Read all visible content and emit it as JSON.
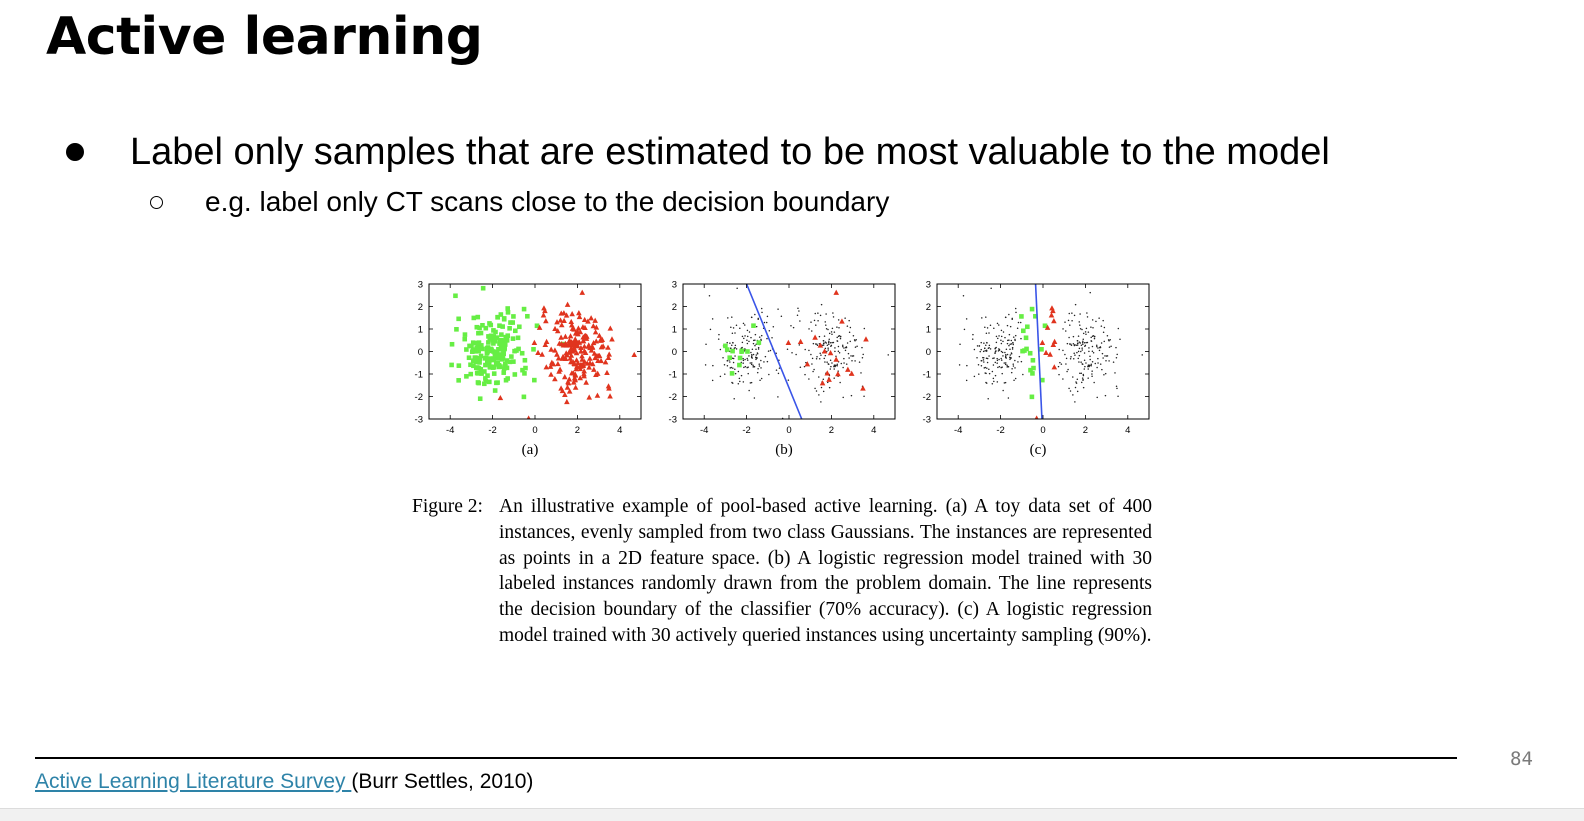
{
  "slide": {
    "title": "Active learning",
    "bullet": "Label only samples that are estimated to be most valuable to the model",
    "sub_bullet": "e.g. label only CT scans close to the decision boundary",
    "page_number": "84"
  },
  "figure": {
    "caption_label": "Figure 2:",
    "caption_text": "An illustrative example of pool-based active learning. (a) A toy data set of 400 instances, evenly sampled from two class Gaussians. The instances are represented as points in a 2D feature space. (b) A logistic regression model trained with 30 labeled instances randomly drawn from the problem domain. The line represents the decision boundary of the classifier (70% accuracy). (c) A logistic regression model trained with 30 actively queried instances using uncertainty sampling (90%).",
    "colors": {
      "class_a": "#66ee44",
      "class_b": "#e0341e",
      "unlabeled": "#222222",
      "boundary": "#3a55e8"
    }
  },
  "chart_data": [
    {
      "type": "scatter",
      "xlabel": "(a)",
      "xlim": [
        -5,
        5
      ],
      "ylim": [
        -3,
        3
      ],
      "xticks": [
        "-4",
        "-2",
        "0",
        "2",
        "4"
      ],
      "yticks": [
        "3",
        "2",
        "1",
        "0",
        "-1",
        "-2",
        "-3"
      ],
      "series": [
        {
          "marker": "square",
          "color": "#66ee44",
          "center": [
            -2,
            0
          ],
          "count": 200
        },
        {
          "marker": "triangle",
          "color": "#e0341e",
          "center": [
            2,
            0
          ],
          "count": 200
        }
      ]
    },
    {
      "type": "scatter",
      "xlabel": "(b)",
      "xlim": [
        -5,
        5
      ],
      "ylim": [
        -3,
        3
      ],
      "xticks": [
        "-4",
        "-2",
        "0",
        "2",
        "4"
      ],
      "yticks": [
        "3",
        "2",
        "1",
        "0",
        "-1",
        "-2",
        "-3"
      ],
      "unlabeled_count": 370,
      "labeled_count": 30,
      "boundary": [
        [
          -2.0,
          3.0
        ],
        [
          0.6,
          -3.0
        ]
      ]
    },
    {
      "type": "scatter",
      "xlabel": "(c)",
      "xlim": [
        -5,
        5
      ],
      "ylim": [
        -3,
        3
      ],
      "xticks": [
        "-4",
        "-2",
        "0",
        "2",
        "4"
      ],
      "yticks": [
        "3",
        "2",
        "1",
        "0",
        "-1",
        "-2",
        "-3"
      ],
      "unlabeled_count": 370,
      "labeled_count": 30,
      "boundary": [
        [
          -0.35,
          3.0
        ],
        [
          -0.05,
          -3.0
        ]
      ]
    }
  ],
  "footer": {
    "link_text": "Active Learning Literature Survey ",
    "citation_rest": "(Burr Settles, 2010)"
  }
}
